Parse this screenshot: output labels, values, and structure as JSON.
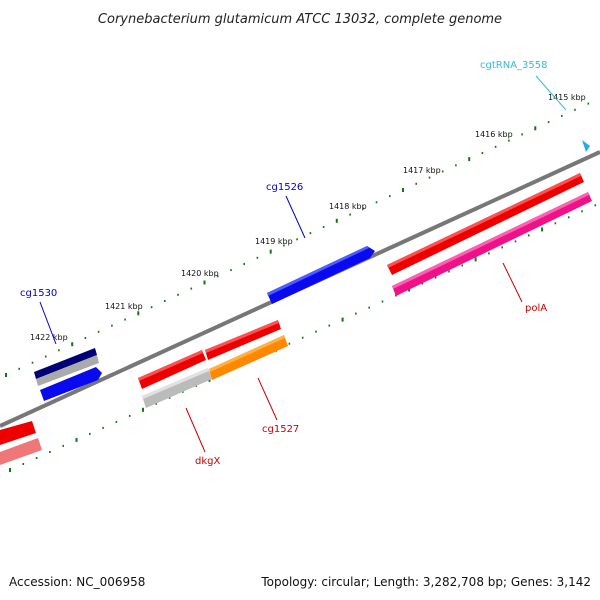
{
  "title": "Corynebacterium glutamicum ATCC 13032, complete genome",
  "footer": {
    "accession": "Accession: NC_006958",
    "summary": "Topology: circular; Length: 3,282,708 bp; Genes: 3,142"
  },
  "ticks": [
    {
      "label": "1415 kbp"
    },
    {
      "label": "1416 kbp"
    },
    {
      "label": "1417 kbp"
    },
    {
      "label": "1418 kbp"
    },
    {
      "label": "1419 kbp"
    },
    {
      "label": "1420 kbp"
    },
    {
      "label": "1421 kbp"
    },
    {
      "label": "1422 kbp"
    }
  ],
  "genes": [
    {
      "label": "cgtRNA_3558",
      "color": "#33bbdd"
    },
    {
      "label": "cg1526",
      "color": "#0000cc"
    },
    {
      "label": "cg1530",
      "color": "#0000cc"
    },
    {
      "label": "polA",
      "color": "#cc0000"
    },
    {
      "label": "cg1527",
      "color": "#cc0000"
    },
    {
      "label": "dkgX",
      "color": "#cc0000"
    }
  ],
  "colors": {
    "backbone": "#777777",
    "tick": "#117711",
    "forward_blue": "#0a0aee",
    "dark_blue": "#000077",
    "red": "#ee0000",
    "pink": "#ee1188",
    "orange": "#ff8800",
    "grey": "#bbbbbb",
    "light_red": "#ee7777",
    "trna": "#22aaee"
  }
}
